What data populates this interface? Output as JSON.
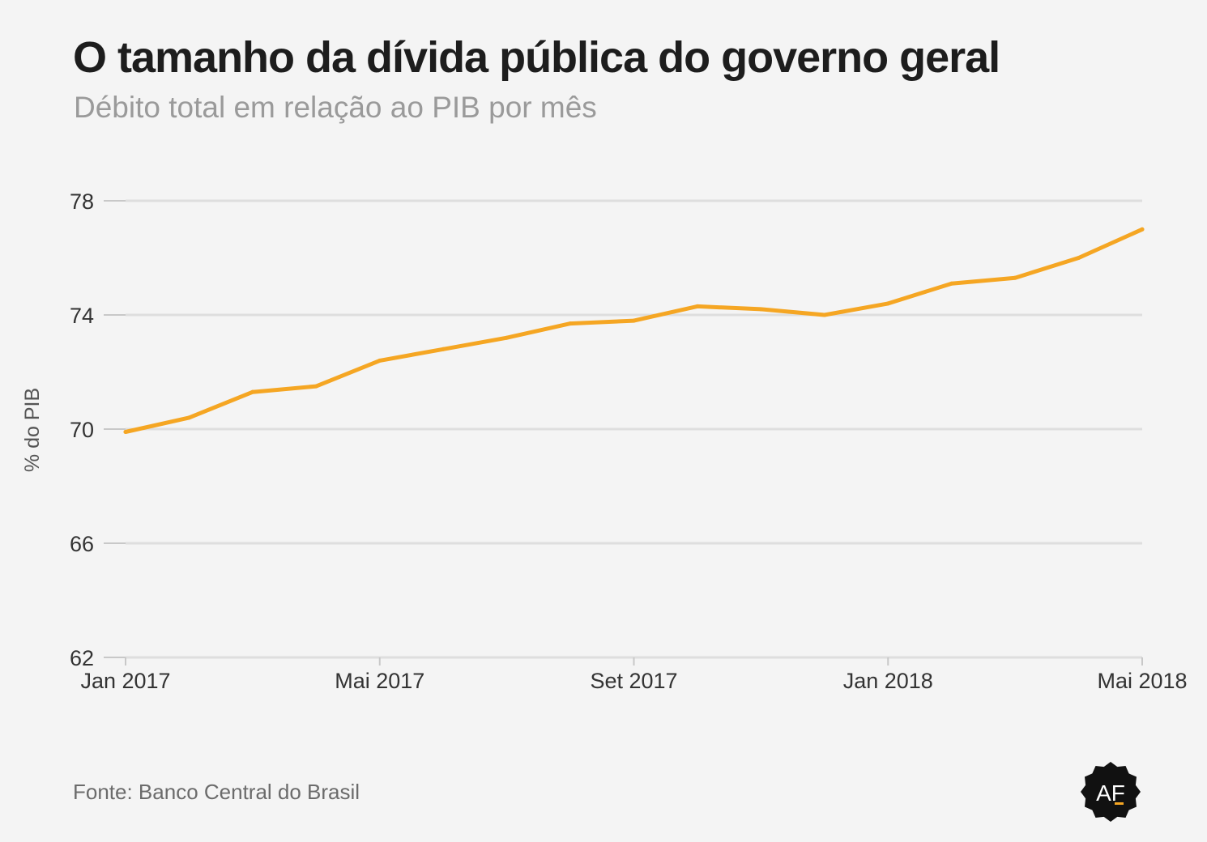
{
  "header": {
    "title": "O tamanho da dívida pública do governo geral",
    "subtitle": "Débito total em relação ao PIB por mês"
  },
  "footer": {
    "source": "Fonte: Banco Central do Brasil",
    "logo_text": "AF"
  },
  "colors": {
    "line": "#f5a623",
    "grid": "#dedede",
    "axis": "#c8c8c8",
    "tick_text": "#333333",
    "background": "#f4f4f4"
  },
  "chart_data": {
    "type": "line",
    "title": "O tamanho da dívida pública do governo geral",
    "subtitle": "Débito total em relação ao PIB por mês",
    "xlabel": "",
    "ylabel": "% do PIB",
    "ylim": [
      62,
      78
    ],
    "yticks": [
      62,
      66,
      70,
      74,
      78
    ],
    "x": [
      "2017-01",
      "2017-02",
      "2017-03",
      "2017-04",
      "2017-05",
      "2017-06",
      "2017-07",
      "2017-08",
      "2017-09",
      "2017-10",
      "2017-11",
      "2017-12",
      "2018-01",
      "2018-02",
      "2018-03",
      "2018-04",
      "2018-05"
    ],
    "xticks": [
      {
        "x": "2017-01",
        "label": "Jan 2017"
      },
      {
        "x": "2017-05",
        "label": "Mai 2017"
      },
      {
        "x": "2017-09",
        "label": "Set 2017"
      },
      {
        "x": "2018-01",
        "label": "Jan 2018"
      },
      {
        "x": "2018-05",
        "label": "Mai 2018"
      }
    ],
    "grid": true,
    "legend": "none",
    "series": [
      {
        "values": [
          69.9,
          70.4,
          71.3,
          71.5,
          72.4,
          72.8,
          73.2,
          73.7,
          73.8,
          74.3,
          74.2,
          74.0,
          74.4,
          75.1,
          75.3,
          76.0,
          77.0
        ]
      }
    ]
  }
}
